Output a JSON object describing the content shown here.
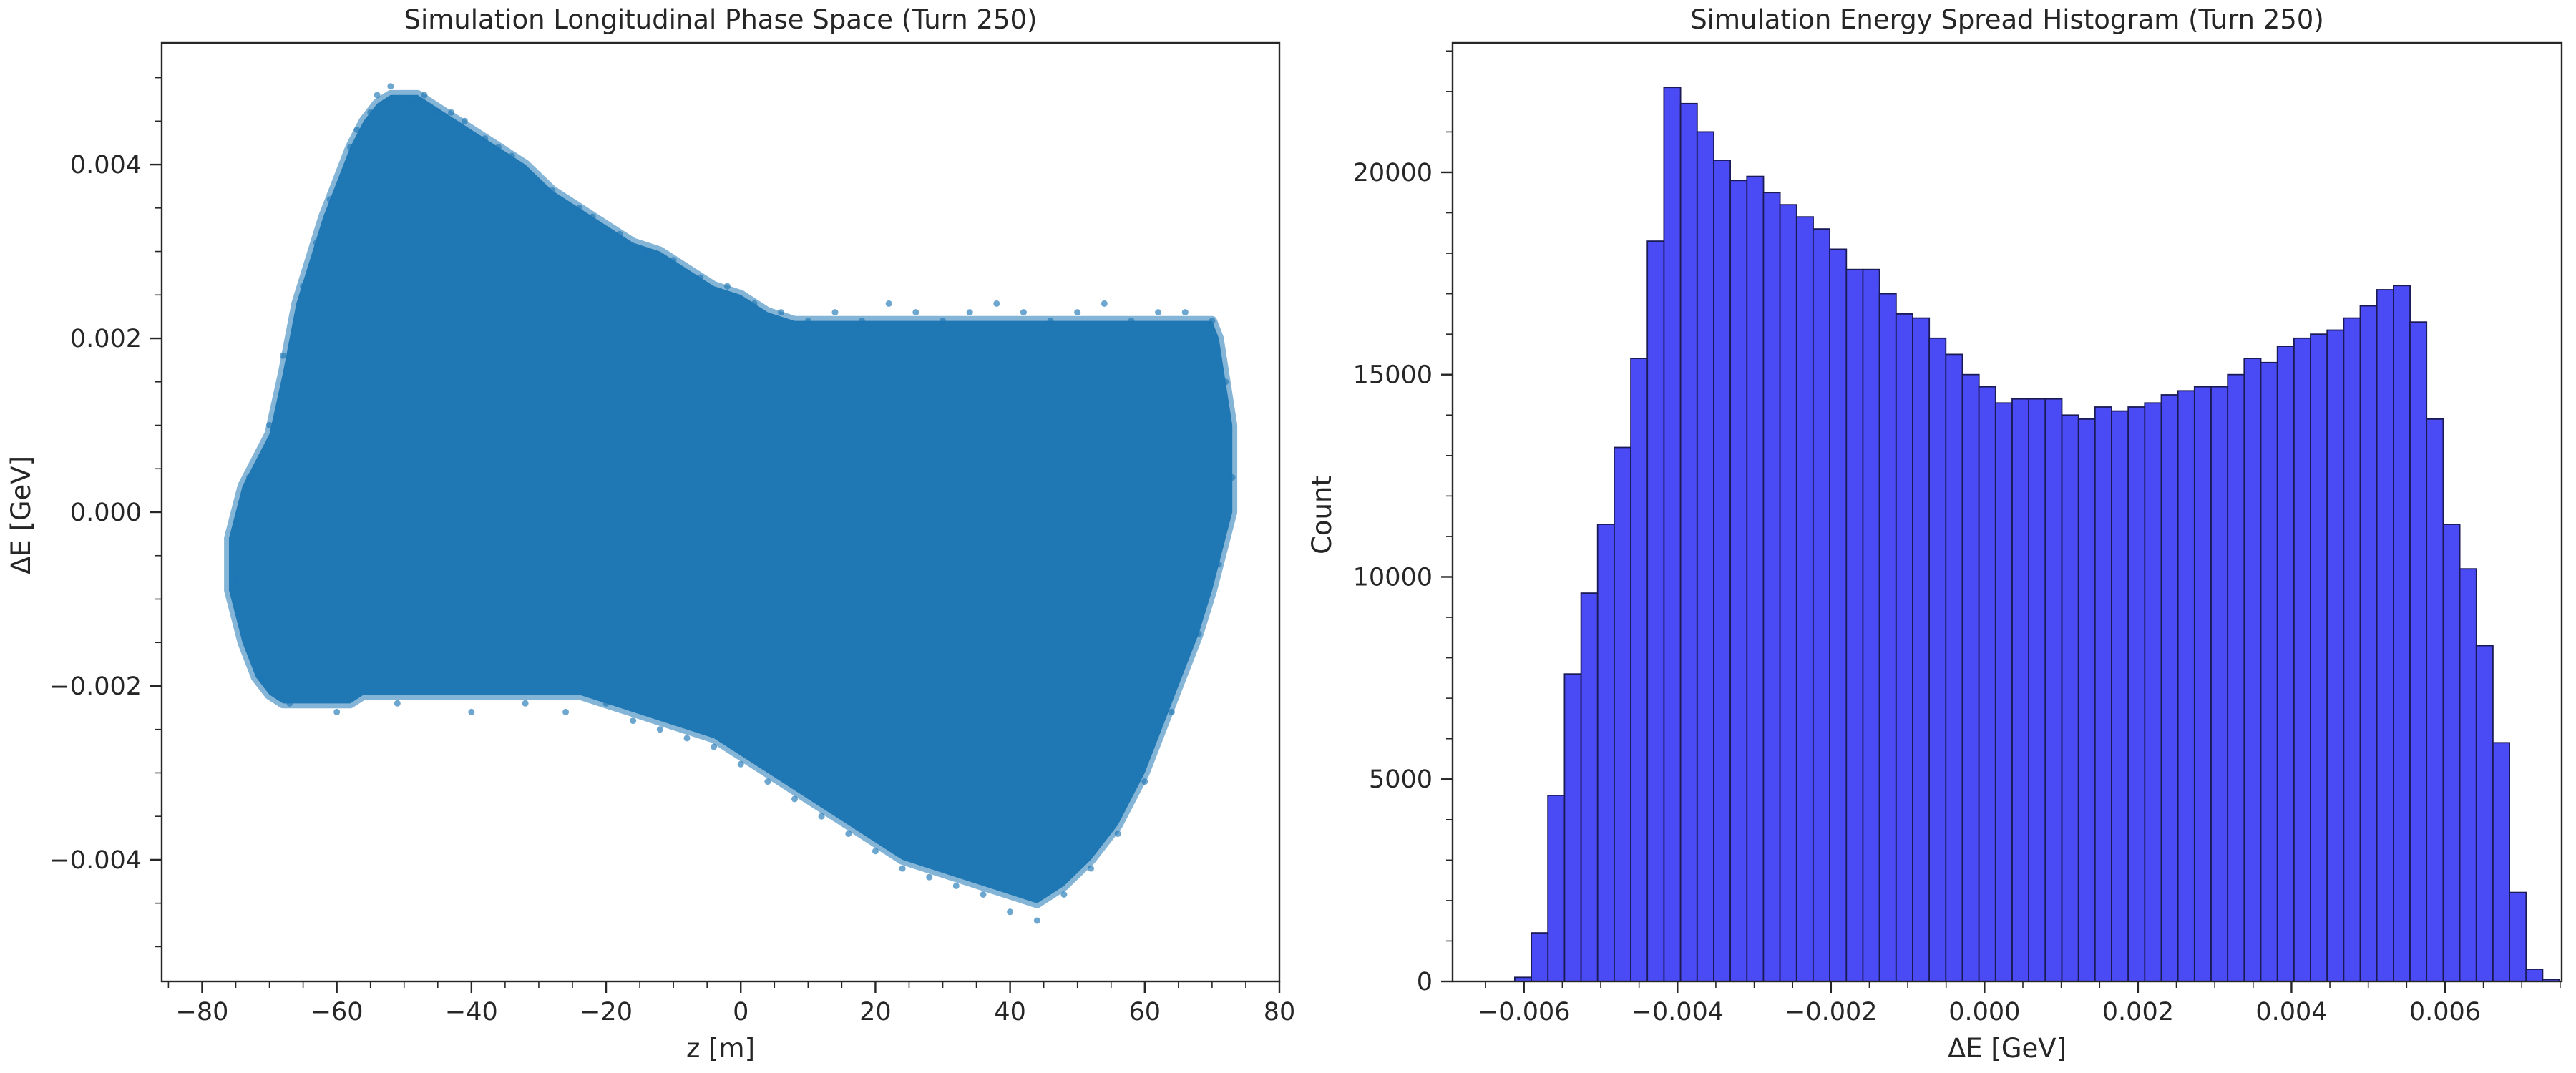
{
  "chart_data": [
    {
      "type": "scatter",
      "title": "Simulation Longitudinal Phase Space (Turn 250)",
      "xlabel": "z [m]",
      "ylabel": "ΔE [GeV]",
      "xlim": [
        -86,
        80
      ],
      "ylim": [
        -0.0054,
        0.0054
      ],
      "xticks": [
        -80,
        -60,
        -40,
        -20,
        0,
        20,
        40,
        60,
        80
      ],
      "xtick_labels": [
        "−80",
        "−60",
        "−40",
        "−20",
        "0",
        "20",
        "40",
        "60",
        "80"
      ],
      "yticks": [
        -0.004,
        -0.002,
        0.0,
        0.002,
        0.004
      ],
      "ytick_labels": [
        "−0.004",
        "−0.002",
        "0.000",
        "0.002",
        "0.004"
      ],
      "color": "#1f77b4",
      "grid": false,
      "envelope": {
        "z": [
          -76,
          -74,
          -72,
          -70,
          -68,
          -66,
          -64,
          -62,
          -60,
          -58,
          -56,
          -54,
          -52,
          -50,
          -48,
          -46,
          -44,
          -42,
          -40,
          -36,
          -32,
          -28,
          -24,
          -20,
          -16,
          -12,
          -8,
          -4,
          0,
          4,
          8,
          12,
          16,
          20,
          24,
          28,
          32,
          36,
          40,
          44,
          48,
          52,
          56,
          60,
          64,
          68,
          70,
          71,
          72,
          73
        ],
        "upper": [
          -0.0003,
          0.0003,
          0.0006,
          0.0009,
          0.0016,
          0.0024,
          0.0029,
          0.0034,
          0.0038,
          0.0042,
          0.0045,
          0.0047,
          0.0048,
          0.0048,
          0.0048,
          0.0047,
          0.0046,
          0.0045,
          0.0044,
          0.0042,
          0.004,
          0.0037,
          0.0035,
          0.0033,
          0.0031,
          0.003,
          0.0028,
          0.0026,
          0.0025,
          0.0023,
          0.0022,
          0.0022,
          0.0022,
          0.0022,
          0.0022,
          0.0022,
          0.0022,
          0.0022,
          0.0022,
          0.0022,
          0.0022,
          0.0022,
          0.0022,
          0.0022,
          0.0022,
          0.0022,
          0.0022,
          0.002,
          0.0015,
          0.001
        ],
        "lower": [
          -0.0009,
          -0.0015,
          -0.0019,
          -0.0021,
          -0.0022,
          -0.0022,
          -0.0022,
          -0.0022,
          -0.0022,
          -0.0022,
          -0.0021,
          -0.0021,
          -0.0021,
          -0.0021,
          -0.0021,
          -0.0021,
          -0.0021,
          -0.0021,
          -0.0021,
          -0.0021,
          -0.0021,
          -0.0021,
          -0.0021,
          -0.0022,
          -0.0023,
          -0.0024,
          -0.0025,
          -0.0026,
          -0.0028,
          -0.003,
          -0.0032,
          -0.0034,
          -0.0036,
          -0.0038,
          -0.004,
          -0.0041,
          -0.0042,
          -0.0043,
          -0.0044,
          -0.0045,
          -0.0043,
          -0.004,
          -0.0036,
          -0.003,
          -0.0022,
          -0.0014,
          -0.0009,
          -0.0006,
          -0.0003,
          0.0
        ]
      },
      "points": [
        [
          -75,
          -0.0008
        ],
        [
          -73,
          0.0004
        ],
        [
          -71,
          -0.0019
        ],
        [
          -70,
          0.001
        ],
        [
          -68,
          0.0018
        ],
        [
          -67,
          -0.0022
        ],
        [
          -65,
          0.0026
        ],
        [
          -63,
          0.0031
        ],
        [
          -61,
          0.0036
        ],
        [
          -60,
          -0.0023
        ],
        [
          -58,
          0.0042
        ],
        [
          -57,
          0.0044
        ],
        [
          -55,
          0.0046
        ],
        [
          -54,
          0.0048
        ],
        [
          -52,
          0.0049
        ],
        [
          -51,
          -0.0022
        ],
        [
          -49,
          0.0047
        ],
        [
          -47,
          0.0048
        ],
        [
          -45,
          0.0046
        ],
        [
          -43,
          0.0046
        ],
        [
          -41,
          0.0045
        ],
        [
          -40,
          -0.0023
        ],
        [
          -38,
          0.0043
        ],
        [
          -36,
          0.0042
        ],
        [
          -34,
          0.0041
        ],
        [
          -32,
          -0.0022
        ],
        [
          -30,
          0.0038
        ],
        [
          -28,
          0.0037
        ],
        [
          -26,
          -0.0023
        ],
        [
          -24,
          0.0035
        ],
        [
          -22,
          0.0034
        ],
        [
          -20,
          -0.0022
        ],
        [
          -18,
          0.0032
        ],
        [
          -16,
          -0.0024
        ],
        [
          -14,
          0.003
        ],
        [
          -12,
          -0.0025
        ],
        [
          -10,
          0.0029
        ],
        [
          -8,
          -0.0026
        ],
        [
          -6,
          0.0027
        ],
        [
          -4,
          -0.0027
        ],
        [
          -2,
          0.0026
        ],
        [
          0,
          -0.0029
        ],
        [
          2,
          0.0024
        ],
        [
          4,
          -0.0031
        ],
        [
          6,
          0.0023
        ],
        [
          8,
          -0.0033
        ],
        [
          10,
          0.0022
        ],
        [
          12,
          -0.0035
        ],
        [
          14,
          0.0023
        ],
        [
          16,
          -0.0037
        ],
        [
          18,
          0.0022
        ],
        [
          20,
          -0.0039
        ],
        [
          22,
          0.0024
        ],
        [
          24,
          -0.0041
        ],
        [
          26,
          0.0023
        ],
        [
          28,
          -0.0042
        ],
        [
          30,
          0.0022
        ],
        [
          32,
          -0.0043
        ],
        [
          34,
          0.0023
        ],
        [
          36,
          -0.0044
        ],
        [
          38,
          0.0024
        ],
        [
          40,
          -0.0046
        ],
        [
          42,
          0.0023
        ],
        [
          44,
          -0.0047
        ],
        [
          46,
          0.0022
        ],
        [
          48,
          -0.0044
        ],
        [
          50,
          0.0023
        ],
        [
          52,
          -0.0041
        ],
        [
          54,
          0.0024
        ],
        [
          56,
          -0.0037
        ],
        [
          58,
          0.0022
        ],
        [
          60,
          -0.0031
        ],
        [
          62,
          0.0023
        ],
        [
          64,
          -0.0023
        ],
        [
          66,
          0.0023
        ],
        [
          68,
          -0.0014
        ],
        [
          70,
          0.0022
        ],
        [
          71,
          -0.0006
        ],
        [
          72,
          0.0015
        ],
        [
          73,
          0.0004
        ]
      ]
    },
    {
      "type": "bar",
      "title": "Simulation Energy Spread Histogram (Turn 250)",
      "xlabel": "ΔE [GeV]",
      "ylabel": "Count",
      "xlim": [
        -0.00693,
        0.00752
      ],
      "ylim": [
        0,
        23200
      ],
      "xticks": [
        -0.006,
        -0.004,
        -0.002,
        0.0,
        0.002,
        0.004,
        0.006
      ],
      "xtick_labels": [
        "−0.006",
        "−0.004",
        "−0.002",
        "0.000",
        "0.002",
        "0.004",
        "0.006"
      ],
      "yticks": [
        0,
        5000,
        10000,
        15000,
        20000
      ],
      "ytick_labels": [
        "0",
        "5000",
        "10000",
        "15000",
        "20000"
      ],
      "bar_color": "#4b4bf5",
      "edge_color": "#1a1a55",
      "grid": false,
      "bin_start": -0.00612,
      "bin_width": 0.000216,
      "values": [
        100,
        1200,
        4600,
        7600,
        9600,
        11300,
        13200,
        15400,
        18300,
        22100,
        21700,
        21000,
        20300,
        19800,
        19900,
        19500,
        19200,
        18900,
        18600,
        18100,
        17600,
        17600,
        17000,
        16500,
        16400,
        15900,
        15500,
        15000,
        14700,
        14300,
        14400,
        14400,
        14400,
        14000,
        13900,
        14200,
        14100,
        14200,
        14300,
        14500,
        14600,
        14700,
        14700,
        15000,
        15400,
        15300,
        15700,
        15900,
        16000,
        16100,
        16400,
        16700,
        17100,
        17200,
        16300,
        13900,
        11300,
        10200,
        8300,
        5900,
        2200,
        300,
        50
      ]
    }
  ]
}
